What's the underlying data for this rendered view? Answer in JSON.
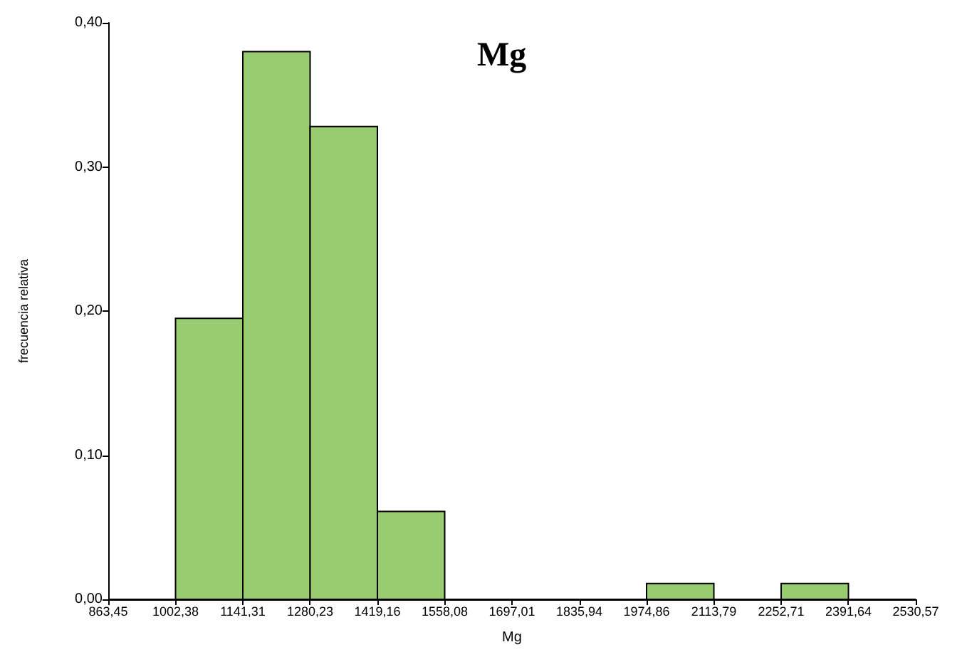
{
  "chart_data": {
    "type": "histogram",
    "title": "Mg",
    "xlabel": "Mg",
    "ylabel": "frecuencia relativa",
    "bins": [
      863.45,
      1002.38,
      1141.31,
      1280.23,
      1419.16,
      1558.08,
      1697.01,
      1835.94,
      1974.86,
      2113.79,
      2252.71,
      2391.64,
      2530.57
    ],
    "values": [
      0,
      0.195,
      0.38,
      0.328,
      0.061,
      0,
      0,
      0,
      0.011,
      0,
      0.011,
      0
    ],
    "color": "#99cc70",
    "xlim": [
      863.45,
      2530.57
    ],
    "xticks": [
      {
        "value": 863.45,
        "label": "863,45"
      },
      {
        "value": 1002.38,
        "label": "1002,38"
      },
      {
        "value": 1141.31,
        "label": "1141,31"
      },
      {
        "value": 1280.23,
        "label": "1280,23"
      },
      {
        "value": 1419.16,
        "label": "1419,16"
      },
      {
        "value": 1558.08,
        "label": "1558,08"
      },
      {
        "value": 1697.01,
        "label": "1697,01"
      },
      {
        "value": 1835.94,
        "label": "1835,94"
      },
      {
        "value": 1974.86,
        "label": "1974,86"
      },
      {
        "value": 2113.79,
        "label": "2113,79"
      },
      {
        "value": 2252.71,
        "label": "2252,71"
      },
      {
        "value": 2391.64,
        "label": "2391,64"
      },
      {
        "value": 2530.57,
        "label": "2530,57"
      }
    ],
    "ylim": [
      0,
      0.4
    ],
    "yticks": [
      {
        "value": 0,
        "label": "0,00"
      },
      {
        "value": 0.1,
        "label": "0,10"
      },
      {
        "value": 0.2,
        "label": "0,20"
      },
      {
        "value": 0.3,
        "label": "0,30"
      },
      {
        "value": 0.4,
        "label": "0,40"
      }
    ],
    "grid": false
  }
}
